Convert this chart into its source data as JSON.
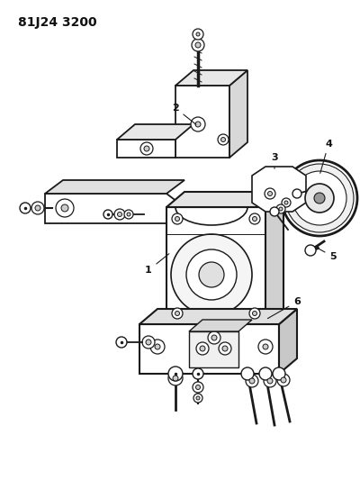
{
  "title": "81J24 3200",
  "bg_color": "#ffffff",
  "line_color": "#1a1a1a",
  "label_color": "#111111",
  "title_fontsize": 10,
  "label_fontsize": 8
}
